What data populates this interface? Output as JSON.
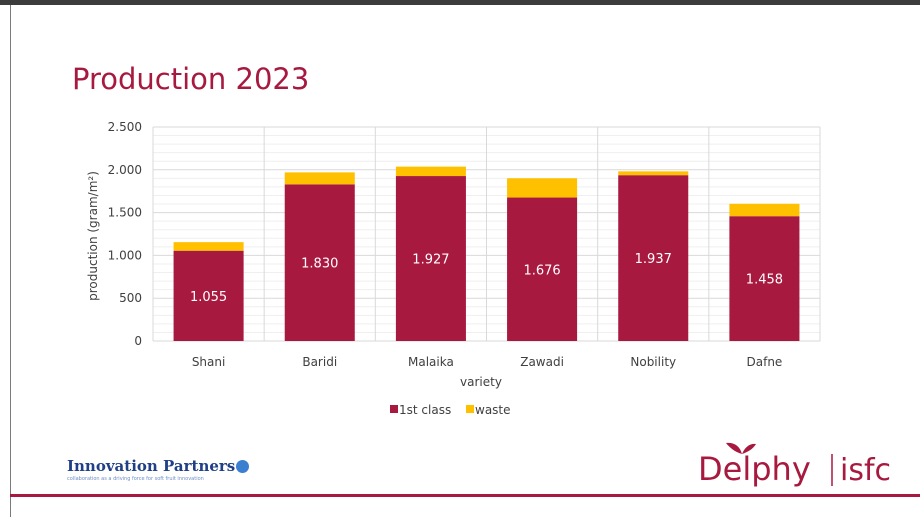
{
  "slide": {
    "title": "Production 2023"
  },
  "colors": {
    "first_class": "#a8193f",
    "waste": "#ffc000",
    "accent": "#a8193f"
  },
  "chart_data": {
    "type": "bar",
    "stacked": true,
    "categories": [
      "Shani",
      "Baridi",
      "Malaika",
      "Zawadi",
      "Nobility",
      "Dafne"
    ],
    "series": [
      {
        "name": "1st class",
        "values": [
          1055,
          1830,
          1927,
          1676,
          1937,
          1458
        ]
      },
      {
        "name": "waste",
        "values": [
          100,
          140,
          110,
          225,
          45,
          145
        ]
      }
    ],
    "data_labels": [
      "1.055",
      "1.830",
      "1.927",
      "1.676",
      "1.937",
      "1.458"
    ],
    "xlabel": "variety",
    "ylabel": "production (gram/m²)",
    "ylim": [
      0,
      2500
    ],
    "y_ticks": [
      0,
      500,
      1000,
      1500,
      2000,
      2500
    ],
    "y_tick_labels": [
      "0",
      "500",
      "1.000",
      "1.500",
      "2.000",
      "2.500"
    ],
    "grid": true,
    "legend": "bottom"
  },
  "logos": {
    "innovation_partners": {
      "name": "Innovation Partners",
      "tagline": "collaboration as a driving force for soft fruit innovation"
    },
    "delphy": {
      "name": "Delphy",
      "partner": "isfc"
    }
  }
}
